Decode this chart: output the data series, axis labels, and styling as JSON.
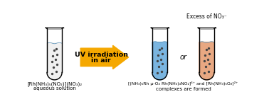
{
  "bg_color": "#ffffff",
  "arrow_color": "#F5A800",
  "tube1_liquid_color": "#f0f0f0",
  "tube2_liquid_color": "#7ab5e0",
  "tube3_liquid_color": "#e8a882",
  "dot_color": "#444444",
  "arrow_text_line1": "UV irradiation",
  "arrow_text_line2": "in air",
  "label1_line1": "[Rh(NH₃)₅(NO₂)](NO₃)₂",
  "label1_line2": "aqueous solution",
  "label2_line1": "[(NH₃)₅Rh μ-O₂ Rh(NH₃)₄NO₂]⁴⁺ and [Rh(NH₃)₅O₂]²⁺",
  "label2_line2": "complexes are formed",
  "excess_label": "Excess of NO₃⁻",
  "or_text": "or",
  "figsize": [
    3.78,
    1.47
  ],
  "dpi": 100
}
